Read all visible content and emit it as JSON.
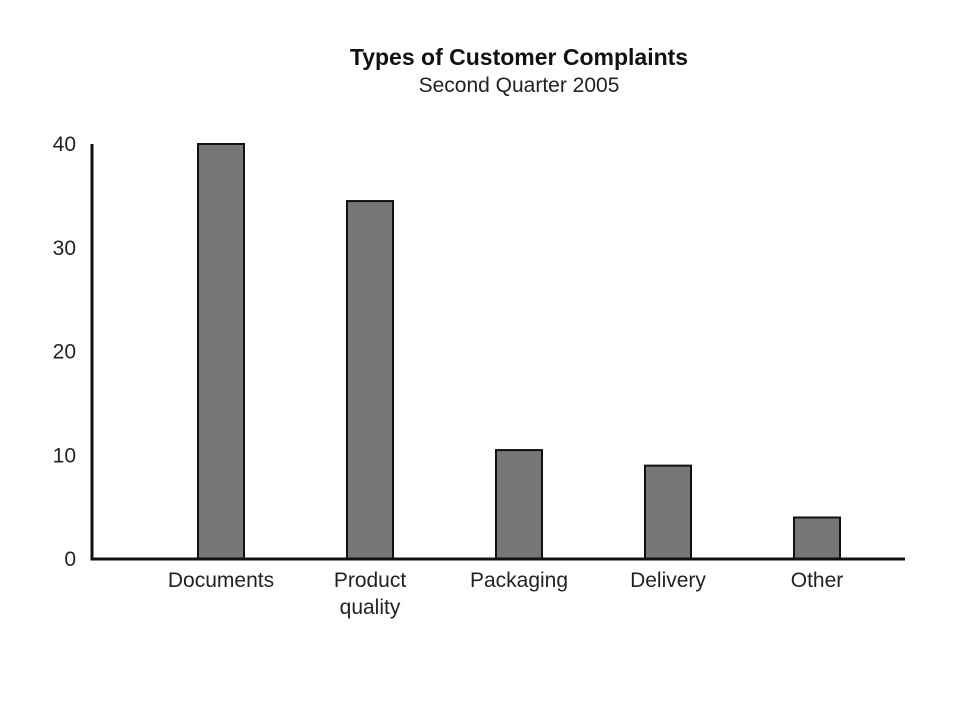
{
  "chart_data": {
    "type": "bar",
    "title": "Types of Customer Complaints",
    "subtitle": "Second Quarter 2005",
    "categories": [
      [
        "Documents"
      ],
      [
        "Product",
        "quality"
      ],
      [
        "Packaging"
      ],
      [
        "Delivery"
      ],
      [
        "Other"
      ]
    ],
    "values": [
      40,
      34.5,
      10.5,
      9,
      4
    ],
    "yticks": [
      0,
      10,
      20,
      30,
      40
    ],
    "ylim": [
      0,
      40
    ],
    "grid": false,
    "bar_color": "#777777",
    "axis_color": "#111111"
  }
}
